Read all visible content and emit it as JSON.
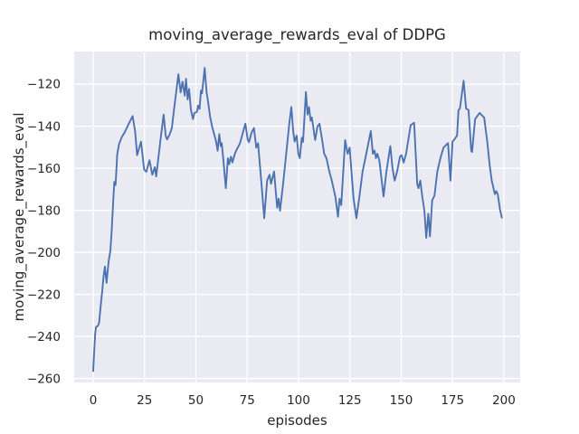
{
  "chart_data": {
    "type": "line",
    "title": "moving_average_rewards_eval of DDPG",
    "xlabel": "episodes",
    "ylabel": "moving_average_rewards_eval",
    "x_ticks": [
      0,
      25,
      50,
      75,
      100,
      125,
      150,
      175,
      200
    ],
    "y_ticks": [
      -260,
      -240,
      -220,
      -200,
      -180,
      -160,
      -140,
      -120
    ],
    "xlim": [
      -9.25,
      207.95
    ],
    "ylim": [
      -261.9,
      -104.5
    ],
    "grid": true,
    "legend_position": "none",
    "line_color": "#4c72b0",
    "plot_bg_color": "#eaeaf2",
    "grid_color": "#ffffff",
    "text_color": "#262626",
    "points": [
      [
        0,
        -256.5
      ],
      [
        0.5,
        -247
      ],
      [
        1,
        -238.5
      ],
      [
        1.4,
        -235.5
      ],
      [
        2.3,
        -235
      ],
      [
        2.9,
        -233.5
      ],
      [
        3.6,
        -226
      ],
      [
        4.4,
        -218.5
      ],
      [
        5,
        -212
      ],
      [
        5.7,
        -206.8
      ],
      [
        6.5,
        -214.5
      ],
      [
        7.5,
        -204.5
      ],
      [
        8.4,
        -199
      ],
      [
        9,
        -190
      ],
      [
        9.8,
        -175
      ],
      [
        10.3,
        -166.5
      ],
      [
        10.9,
        -168
      ],
      [
        11.7,
        -153.5
      ],
      [
        12.6,
        -148.5
      ],
      [
        14,
        -145
      ],
      [
        15,
        -143.5
      ],
      [
        16,
        -141.6
      ],
      [
        17.5,
        -138.5
      ],
      [
        19.2,
        -135.2
      ],
      [
        20.4,
        -142.3
      ],
      [
        21.4,
        -153.8
      ],
      [
        23.3,
        -147.4
      ],
      [
        24.8,
        -160.6
      ],
      [
        25.9,
        -161.7
      ],
      [
        27.4,
        -156.2
      ],
      [
        28.8,
        -163.1
      ],
      [
        30,
        -159.5
      ],
      [
        30.7,
        -163.9
      ],
      [
        32.5,
        -148.8
      ],
      [
        34.3,
        -134.5
      ],
      [
        35.3,
        -144.5
      ],
      [
        36,
        -146.3
      ],
      [
        37.2,
        -144
      ],
      [
        38.3,
        -141
      ],
      [
        39.5,
        -131
      ],
      [
        41.5,
        -115.3
      ],
      [
        42.6,
        -124
      ],
      [
        43.5,
        -118.8
      ],
      [
        44.6,
        -125.5
      ],
      [
        45.2,
        -117.5
      ],
      [
        46,
        -127.3
      ],
      [
        46.7,
        -122.3
      ],
      [
        47.6,
        -132.3
      ],
      [
        48.6,
        -136.6
      ],
      [
        49.3,
        -133.7
      ],
      [
        50.5,
        -133.2
      ],
      [
        51.1,
        -130.2
      ],
      [
        51.8,
        -131.8
      ],
      [
        52.5,
        -123
      ],
      [
        53,
        -124.4
      ],
      [
        54.3,
        -112.3
      ],
      [
        55.2,
        -123.7
      ],
      [
        56,
        -128.7
      ],
      [
        57,
        -135.9
      ],
      [
        58.1,
        -140.9
      ],
      [
        59.8,
        -147
      ],
      [
        60.6,
        -151.7
      ],
      [
        61.4,
        -143.8
      ],
      [
        62.1,
        -149.5
      ],
      [
        62.6,
        -148.1
      ],
      [
        63.4,
        -156
      ],
      [
        64.6,
        -169.5
      ],
      [
        65.6,
        -155.2
      ],
      [
        66.2,
        -158.1
      ],
      [
        67.1,
        -154.5
      ],
      [
        67.8,
        -157.3
      ],
      [
        69,
        -153.1
      ],
      [
        70,
        -150.9
      ],
      [
        71.5,
        -148.1
      ],
      [
        72.7,
        -143.8
      ],
      [
        74.1,
        -138.8
      ],
      [
        75.3,
        -146.6
      ],
      [
        75.9,
        -147.6
      ],
      [
        77.1,
        -143.1
      ],
      [
        78.3,
        -140.9
      ],
      [
        79.4,
        -150.2
      ],
      [
        80.3,
        -148.1
      ],
      [
        82.2,
        -170.2
      ],
      [
        83.3,
        -183.8
      ],
      [
        84.7,
        -165.9
      ],
      [
        85.9,
        -163.1
      ],
      [
        86.6,
        -167.4
      ],
      [
        88.1,
        -161.6
      ],
      [
        89.6,
        -178.8
      ],
      [
        90.3,
        -174.5
      ],
      [
        91,
        -180.2
      ],
      [
        92.5,
        -167.4
      ],
      [
        94,
        -153.1
      ],
      [
        95.5,
        -138.8
      ],
      [
        96.5,
        -130.9
      ],
      [
        97.4,
        -142.3
      ],
      [
        98.1,
        -147.3
      ],
      [
        99.1,
        -144.5
      ],
      [
        99.9,
        -153.1
      ],
      [
        100.6,
        -155.2
      ],
      [
        101.6,
        -145.5
      ],
      [
        102.2,
        -147.5
      ],
      [
        103.6,
        -123.7
      ],
      [
        104.4,
        -134.5
      ],
      [
        105.1,
        -130.9
      ],
      [
        105.9,
        -137.4
      ],
      [
        106.5,
        -135.9
      ],
      [
        108.1,
        -146.6
      ],
      [
        109.2,
        -140.2
      ],
      [
        110.2,
        -138.8
      ],
      [
        111.4,
        -145.9
      ],
      [
        112.5,
        -153.1
      ],
      [
        113.6,
        -155.2
      ],
      [
        115,
        -161.6
      ],
      [
        116.2,
        -165.9
      ],
      [
        118,
        -173.8
      ],
      [
        119.2,
        -183.1
      ],
      [
        120,
        -174.5
      ],
      [
        120.8,
        -177.5
      ],
      [
        122.7,
        -146.6
      ],
      [
        123.9,
        -153.1
      ],
      [
        124.9,
        -150.2
      ],
      [
        126.8,
        -174.5
      ],
      [
        128.2,
        -183.8
      ],
      [
        129.7,
        -173.1
      ],
      [
        131.2,
        -161.6
      ],
      [
        132.7,
        -154.5
      ],
      [
        135.2,
        -142.3
      ],
      [
        136.2,
        -153.1
      ],
      [
        137,
        -151.6
      ],
      [
        137.7,
        -155.2
      ],
      [
        138.4,
        -153.1
      ],
      [
        139.4,
        -156.6
      ],
      [
        141.4,
        -173.4
      ],
      [
        142.8,
        -161.6
      ],
      [
        144.7,
        -149.5
      ],
      [
        145.8,
        -160.2
      ],
      [
        146.8,
        -165.9
      ],
      [
        148,
        -161.6
      ],
      [
        149.4,
        -154.5
      ],
      [
        150.2,
        -153.8
      ],
      [
        151.2,
        -157.3
      ],
      [
        152.4,
        -153.1
      ],
      [
        154.6,
        -139.5
      ],
      [
        156.3,
        -138.4
      ],
      [
        157.8,
        -167.4
      ],
      [
        158.4,
        -169.5
      ],
      [
        159.3,
        -165.9
      ],
      [
        160.3,
        -173.8
      ],
      [
        161.3,
        -180.2
      ],
      [
        162.2,
        -193.1
      ],
      [
        163.2,
        -181.6
      ],
      [
        164,
        -192.4
      ],
      [
        165.1,
        -175.2
      ],
      [
        166.2,
        -173.1
      ],
      [
        167.6,
        -161.6
      ],
      [
        169.1,
        -155.2
      ],
      [
        170.6,
        -150.2
      ],
      [
        172,
        -148.8
      ],
      [
        172.8,
        -148.1
      ],
      [
        174,
        -165.9
      ],
      [
        175,
        -147.3
      ],
      [
        175.7,
        -146.6
      ],
      [
        177.2,
        -144.5
      ],
      [
        177.9,
        -132.3
      ],
      [
        178.6,
        -131.6
      ],
      [
        180.4,
        -118.4
      ],
      [
        181.6,
        -131.6
      ],
      [
        182.8,
        -132.3
      ],
      [
        184.1,
        -151.6
      ],
      [
        184.5,
        -152.3
      ],
      [
        186,
        -136.6
      ],
      [
        188.2,
        -133.7
      ],
      [
        190.4,
        -135.9
      ],
      [
        191.9,
        -147.3
      ],
      [
        193.1,
        -158.7
      ],
      [
        194.1,
        -165.9
      ],
      [
        195.6,
        -172.3
      ],
      [
        196.3,
        -170.9
      ],
      [
        197,
        -172.3
      ],
      [
        198.1,
        -179.5
      ],
      [
        199,
        -183.5
      ]
    ]
  }
}
